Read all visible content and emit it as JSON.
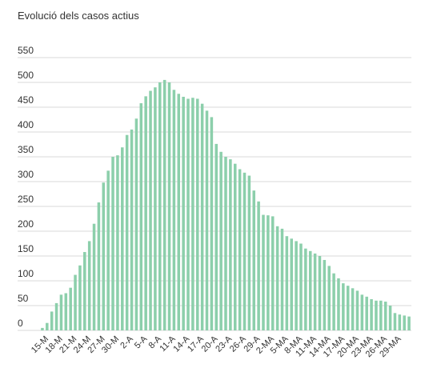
{
  "chart_data": {
    "type": "bar",
    "title": "Evolució dels casos actius",
    "xlabel": "",
    "ylabel": "",
    "ylim": [
      0,
      550
    ],
    "yticks": [
      "0",
      "50",
      "100",
      "150",
      "200",
      "250",
      "300",
      "350",
      "400",
      "450",
      "500",
      "550"
    ],
    "grid": true,
    "bar_color": "#8ccfab",
    "x_tick_labels": [
      "15-M",
      "18-M",
      "21-M",
      "24-M",
      "27-M",
      "30-M",
      "2-A",
      "5-A",
      "8-A",
      "11-A",
      "14-A",
      "17-A",
      "20-A",
      "23-A",
      "26-A",
      "29-A",
      "2-MA",
      "5-MA",
      "8-MA",
      "11-MA",
      "14-MA",
      "17-MA",
      "20-MA",
      "23-MA",
      "26-MA",
      "29-MA"
    ],
    "x_tick_every": 3,
    "values": [
      5,
      15,
      38,
      55,
      72,
      75,
      86,
      112,
      131,
      158,
      180,
      215,
      258,
      298,
      322,
      350,
      353,
      369,
      394,
      405,
      427,
      458,
      472,
      483,
      490,
      500,
      505,
      500,
      485,
      477,
      471,
      467,
      469,
      467,
      457,
      443,
      430,
      376,
      360,
      350,
      345,
      336,
      325,
      318,
      312,
      282,
      260,
      233,
      232,
      230,
      210,
      205,
      190,
      185,
      180,
      175,
      165,
      160,
      155,
      150,
      142,
      130,
      115,
      105,
      95,
      90,
      85,
      80,
      72,
      68,
      63,
      60,
      60,
      58,
      50,
      35,
      32,
      30,
      28
    ]
  }
}
